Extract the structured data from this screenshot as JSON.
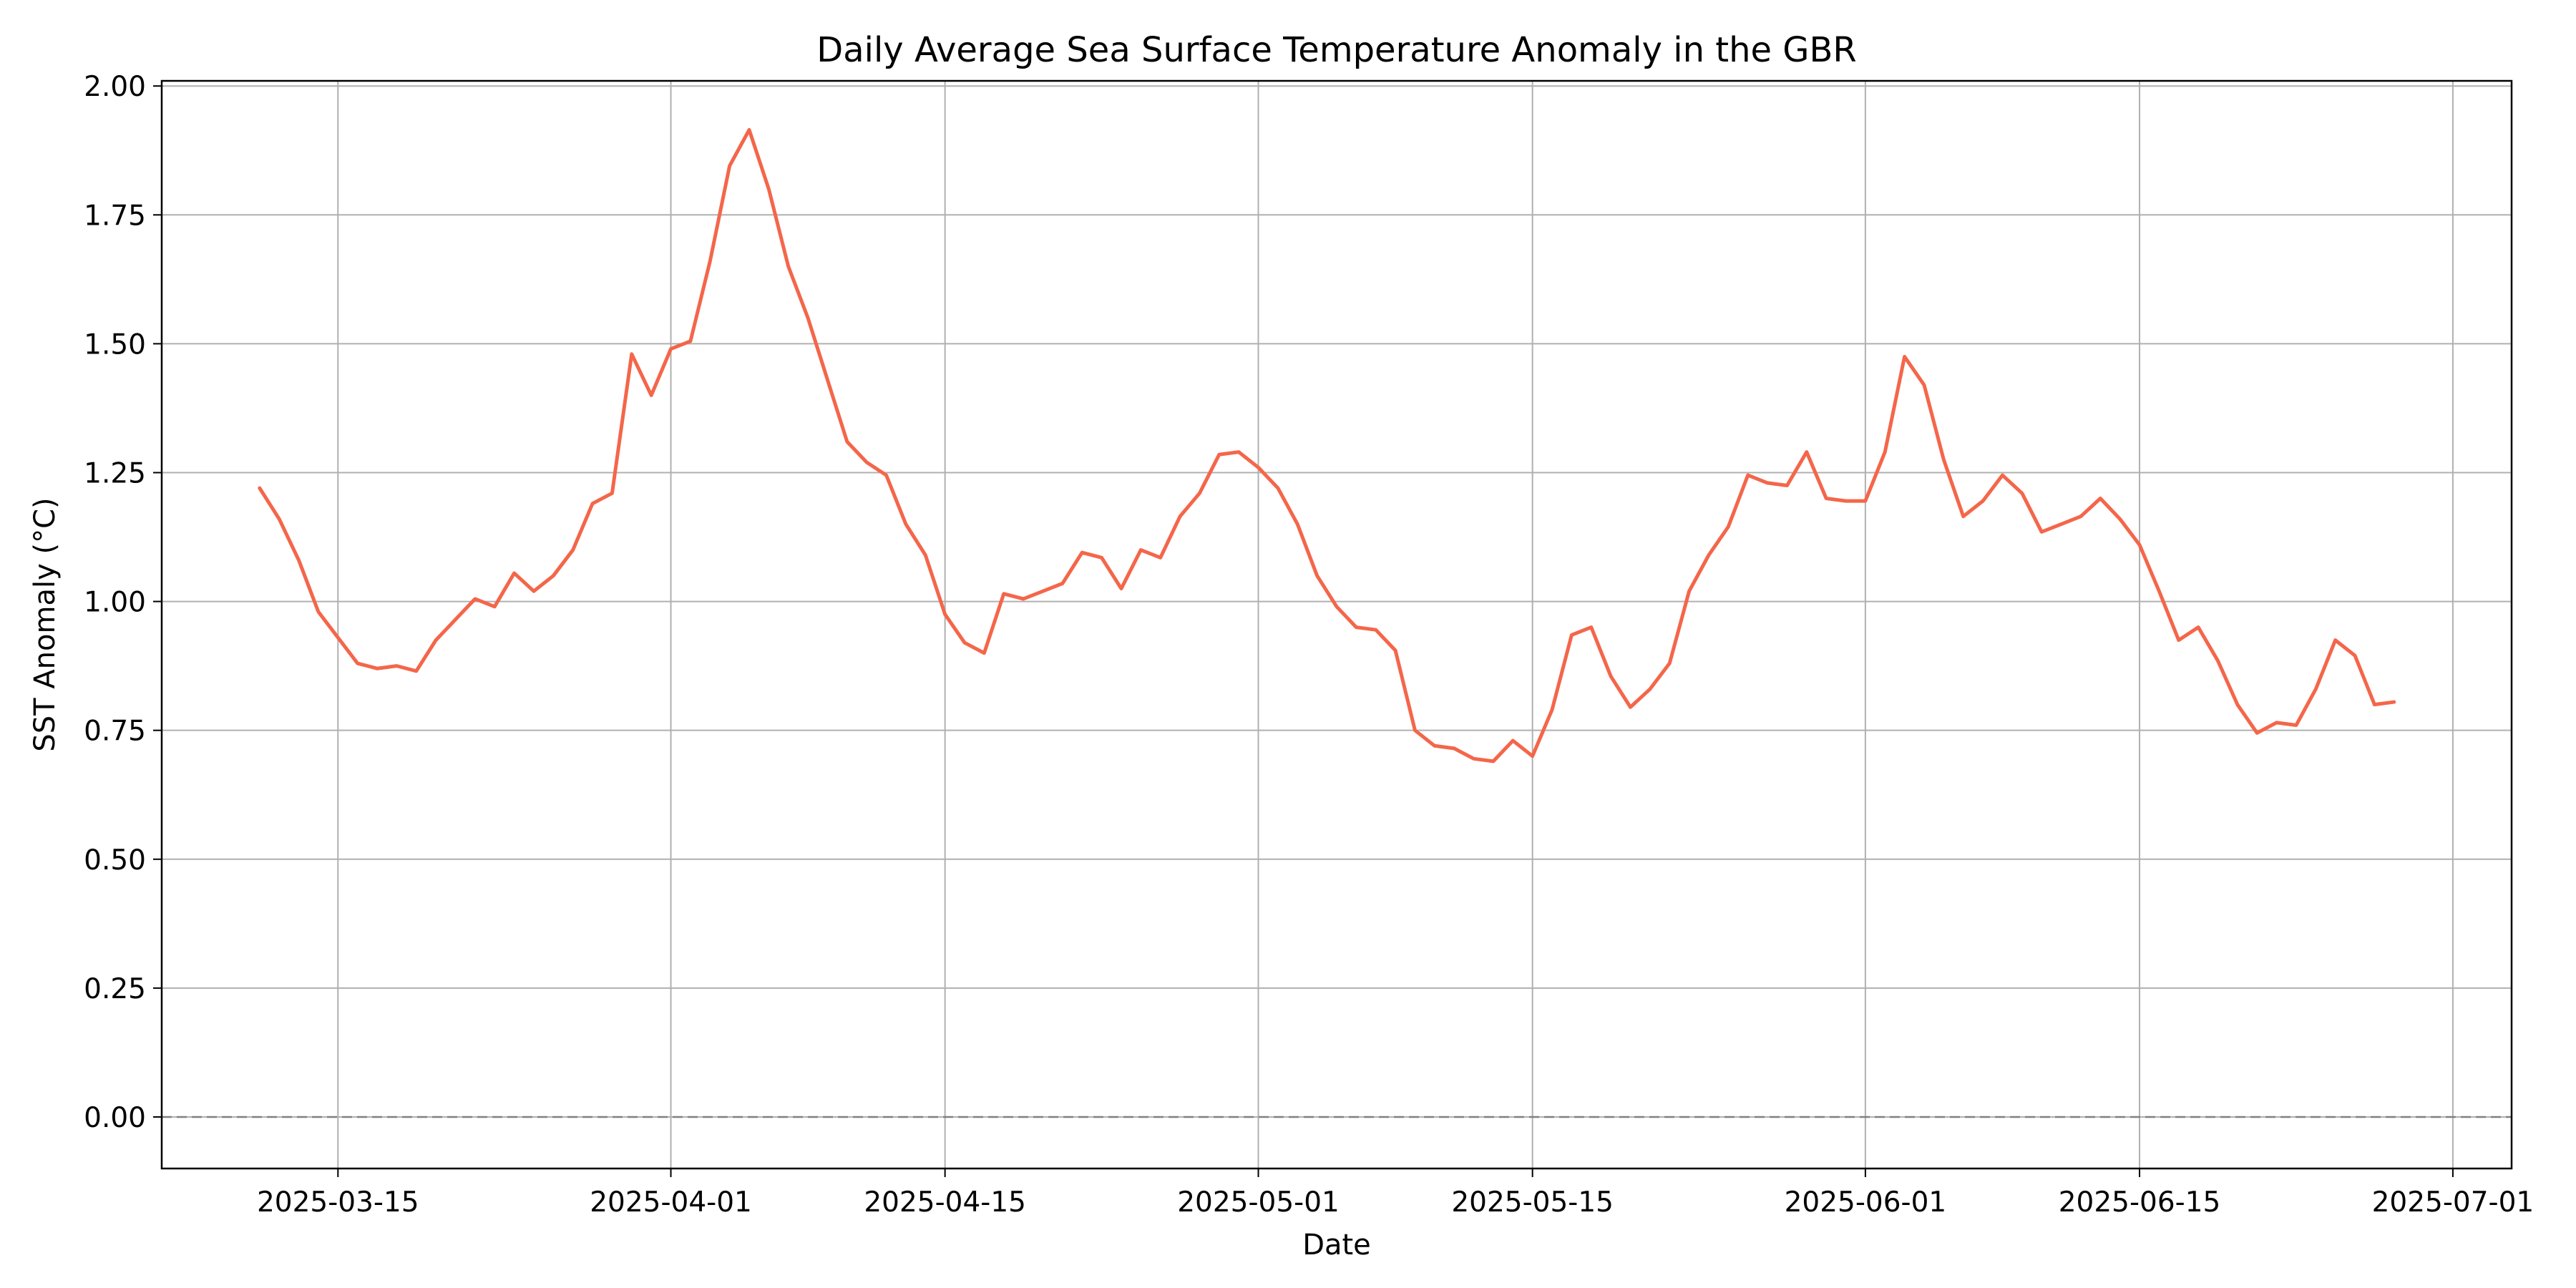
{
  "chart_data": {
    "type": "line",
    "title": "Daily Average Sea Surface Temperature Anomaly in the GBR",
    "xlabel": "Date",
    "ylabel": "SST Anomaly (°C)",
    "grid": true,
    "legend": "none",
    "xlim": [
      "2025-03-06",
      "2025-07-04"
    ],
    "ylim": [
      -0.1,
      2.01
    ],
    "x_ticks": [
      "2025-03-15",
      "2025-04-01",
      "2025-04-15",
      "2025-05-01",
      "2025-05-15",
      "2025-06-01",
      "2025-06-15",
      "2025-07-01"
    ],
    "y_ticks": [
      0.0,
      0.25,
      0.5,
      0.75,
      1.0,
      1.25,
      1.5,
      1.75,
      2.0
    ],
    "y_tick_labels": [
      "0.00",
      "0.25",
      "0.50",
      "0.75",
      "1.00",
      "1.25",
      "1.50",
      "1.75",
      "2.00"
    ],
    "reference_line": {
      "y": 0,
      "style": "dashed",
      "color": "#808080"
    },
    "series": [
      {
        "color": "#f4664a",
        "start_date": "2025-03-11",
        "values": [
          1.22,
          1.16,
          1.08,
          0.98,
          0.93,
          0.88,
          0.87,
          0.875,
          0.865,
          0.925,
          0.965,
          1.005,
          0.99,
          1.055,
          1.02,
          1.05,
          1.1,
          1.19,
          1.21,
          1.48,
          1.4,
          1.49,
          1.505,
          1.66,
          1.845,
          1.915,
          1.8,
          1.65,
          1.55,
          1.43,
          1.31,
          1.27,
          1.245,
          1.15,
          1.09,
          0.975,
          0.92,
          0.9,
          1.015,
          1.005,
          1.02,
          1.035,
          1.095,
          1.085,
          1.025,
          1.1,
          1.085,
          1.165,
          1.21,
          1.285,
          1.29,
          1.26,
          1.22,
          1.15,
          1.05,
          0.99,
          0.95,
          0.945,
          0.905,
          0.75,
          0.72,
          0.715,
          0.695,
          0.69,
          0.73,
          0.7,
          0.79,
          0.935,
          0.95,
          0.855,
          0.795,
          0.83,
          0.88,
          1.02,
          1.09,
          1.145,
          1.245,
          1.23,
          1.225,
          1.29,
          1.2,
          1.195,
          1.195,
          1.29,
          1.475,
          1.42,
          1.275,
          1.165,
          1.195,
          1.245,
          1.21,
          1.135,
          1.15,
          1.165,
          1.2,
          1.16,
          1.11,
          1.02,
          0.925,
          0.95,
          0.885,
          0.8,
          0.745,
          0.765,
          0.76,
          0.83,
          0.925,
          0.895,
          0.8,
          0.805
        ]
      }
    ]
  }
}
